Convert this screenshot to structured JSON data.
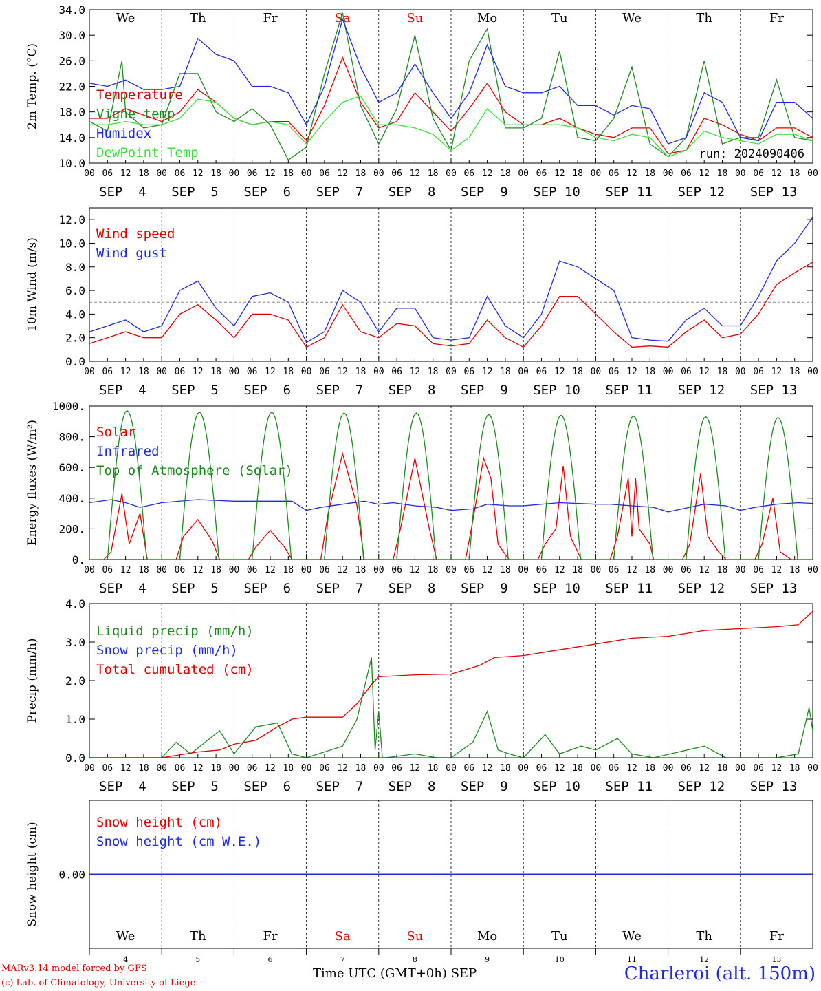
{
  "footer": {
    "model": "MARv3.14 model forced by GFS",
    "copyright": "(c) Lab. of Climatology, University of Liege",
    "time_axis": "Time UTC (GMT+0h) SEP",
    "station": "Charleroi (alt. 150m)"
  },
  "chart_data": [
    {
      "type": "line",
      "ylabel": "2m Temp. (°C)",
      "ylim": [
        10,
        34
      ],
      "yticks": [
        "10.0",
        "14.0",
        "18.0",
        "22.0",
        "26.0",
        "30.0",
        "34.0"
      ],
      "xlim_days": [
        0,
        10
      ],
      "weekdays": [
        "We",
        "Th",
        "Fr",
        "Sa",
        "Su",
        "Mo",
        "Tu",
        "We",
        "Th",
        "Fr"
      ],
      "weekend_color": "#e00000",
      "dates": [
        "SEP  4",
        "SEP  5",
        "SEP  6",
        "SEP  7",
        "SEP  8",
        "SEP  9",
        "SEP 10",
        "SEP 11",
        "SEP 12",
        "SEP 13"
      ],
      "hour_ticks": [
        "00",
        "06",
        "12",
        "18"
      ],
      "annotation": "run: 2024090406",
      "grid": "vertical dashed at day boundaries",
      "series": [
        {
          "name": "Temperature",
          "color": "#e00000",
          "x": [
            0,
            0.25,
            0.5,
            0.75,
            1,
            1.25,
            1.5,
            1.75,
            2,
            2.25,
            2.5,
            2.75,
            3,
            3.25,
            3.5,
            3.75,
            4,
            4.25,
            4.5,
            4.75,
            5,
            5.25,
            5.5,
            5.75,
            6,
            6.25,
            6.5,
            6.75,
            7,
            7.25,
            7.5,
            7.75,
            8,
            8.25,
            8.5,
            8.75,
            9,
            9.25,
            9.5,
            9.75,
            10
          ],
          "y": [
            17,
            17,
            18.5,
            17.5,
            16.5,
            18,
            21.5,
            19.5,
            17,
            16,
            16.5,
            16.5,
            13.5,
            19,
            26.5,
            19.5,
            15.5,
            16.5,
            21,
            18,
            15,
            18.5,
            22.5,
            18,
            16,
            16,
            17,
            15.5,
            14.5,
            14,
            15.5,
            15.5,
            11.5,
            12,
            17,
            16,
            14.5,
            13.5,
            15.5,
            15.5,
            14
          ]
        },
        {
          "name": "Vigne temp",
          "color": "#1e8a1e",
          "x": [
            0,
            0.25,
            0.45,
            0.5,
            0.75,
            1,
            1.25,
            1.5,
            1.75,
            2,
            2.25,
            2.5,
            2.75,
            3,
            3.25,
            3.5,
            3.75,
            4,
            4.25,
            4.5,
            4.75,
            5,
            5.25,
            5.5,
            5.75,
            6,
            6.25,
            6.5,
            6.75,
            7,
            7.25,
            7.5,
            7.75,
            8,
            8.25,
            8.5,
            8.75,
            9,
            9.25,
            9.5,
            9.75,
            10
          ],
          "y": [
            16.5,
            15,
            26,
            18,
            15.5,
            16,
            24,
            24,
            18,
            16.5,
            18.5,
            16,
            10.5,
            12.5,
            24,
            33.5,
            19,
            13,
            18.5,
            30,
            17,
            12,
            26,
            31,
            15.5,
            15.5,
            17,
            27.5,
            14,
            13.5,
            17,
            25,
            13,
            11,
            14,
            26,
            13,
            14,
            14,
            23,
            14,
            13.5
          ]
        },
        {
          "name": "Humidex",
          "color": "#1f2bdc",
          "x": [
            0,
            0.25,
            0.5,
            0.75,
            1,
            1.25,
            1.5,
            1.75,
            2,
            2.25,
            2.5,
            2.75,
            3,
            3.25,
            3.5,
            3.75,
            4,
            4.25,
            4.5,
            4.75,
            5,
            5.25,
            5.5,
            5.75,
            6,
            6.25,
            6.5,
            6.75,
            7,
            7.25,
            7.5,
            7.75,
            8,
            8.25,
            8.5,
            8.75,
            9,
            9.25,
            9.5,
            9.75,
            10
          ],
          "y": [
            22.5,
            22,
            23,
            21.5,
            21.5,
            22,
            29.5,
            27,
            26,
            22,
            22,
            21,
            16,
            22,
            32.5,
            25,
            19.5,
            21,
            25.5,
            21,
            17,
            21,
            28.5,
            22,
            21,
            21,
            22,
            19,
            19,
            17.5,
            19,
            18.5,
            13,
            14,
            21,
            19.5,
            14,
            13.5,
            19.5,
            19.5,
            17
          ]
        },
        {
          "name": "DewPoint Temp",
          "color": "#3ce03c",
          "x": [
            0,
            0.25,
            0.5,
            0.75,
            1,
            1.25,
            1.5,
            1.75,
            2,
            2.25,
            2.5,
            2.75,
            3,
            3.25,
            3.5,
            3.75,
            4,
            4.25,
            4.5,
            4.75,
            5,
            5.25,
            5.5,
            5.75,
            6,
            6.25,
            6.5,
            6.75,
            7,
            7.25,
            7.5,
            7.75,
            8,
            8.25,
            8.5,
            8.75,
            9,
            9.25,
            9.5,
            9.75,
            10
          ],
          "y": [
            16,
            16,
            16.5,
            16,
            16,
            17,
            20,
            19.5,
            17,
            16,
            16.5,
            16,
            13,
            16.5,
            19.5,
            20.5,
            16,
            16,
            15.5,
            14.5,
            12,
            14,
            18.5,
            16,
            16,
            16,
            16,
            15.5,
            14,
            13.5,
            14.5,
            14,
            11,
            12,
            15,
            14,
            13.5,
            13,
            14.5,
            14.5,
            13.5
          ]
        }
      ]
    },
    {
      "type": "line",
      "ylabel": "10m Wind (m/s)",
      "ylim": [
        0,
        13
      ],
      "yticks": [
        "0.0",
        "2.0",
        "4.0",
        "6.0",
        "8.0",
        "10.0",
        "12.0"
      ],
      "reference_line": 5,
      "series": [
        {
          "name": "Wind speed",
          "color": "#e00000",
          "x": [
            0,
            0.25,
            0.5,
            0.75,
            1,
            1.25,
            1.5,
            1.75,
            2,
            2.25,
            2.5,
            2.75,
            3,
            3.25,
            3.5,
            3.75,
            4,
            4.25,
            4.5,
            4.75,
            5,
            5.25,
            5.5,
            5.75,
            6,
            6.25,
            6.5,
            6.75,
            7,
            7.25,
            7.5,
            7.75,
            8,
            8.25,
            8.5,
            8.75,
            9,
            9.25,
            9.5,
            9.75,
            10
          ],
          "y": [
            1.5,
            2,
            2.5,
            2,
            2,
            4,
            4.8,
            3.5,
            2,
            4,
            4,
            3.5,
            1.2,
            2,
            4.8,
            2.5,
            2,
            3.2,
            3,
            1.5,
            1.3,
            1.5,
            3.5,
            2,
            1.2,
            3,
            5.5,
            5.5,
            4,
            2.5,
            1.2,
            1.3,
            1.2,
            2.5,
            3.5,
            2,
            2.3,
            4,
            6.5,
            7.5,
            8.4
          ]
        },
        {
          "name": "Wind gust",
          "color": "#1f2bdc",
          "x": [
            0,
            0.25,
            0.5,
            0.75,
            1,
            1.25,
            1.5,
            1.75,
            2,
            2.25,
            2.5,
            2.75,
            3,
            3.25,
            3.5,
            3.75,
            4,
            4.25,
            4.5,
            4.75,
            5,
            5.25,
            5.5,
            5.75,
            6,
            6.25,
            6.5,
            6.75,
            7,
            7.25,
            7.5,
            7.75,
            8,
            8.25,
            8.5,
            8.75,
            9,
            9.25,
            9.5,
            9.75,
            10
          ],
          "y": [
            2.5,
            3,
            3.5,
            2.5,
            3,
            6,
            6.8,
            4.5,
            3,
            5.5,
            5.8,
            5,
            1.6,
            2.5,
            6,
            5,
            2.5,
            4.5,
            4.5,
            2,
            1.8,
            2,
            5.5,
            3,
            2,
            4,
            8.5,
            8,
            7,
            6,
            2,
            1.8,
            1.7,
            3.5,
            4.5,
            3,
            3,
            5.5,
            8.5,
            10,
            12.2
          ]
        }
      ]
    },
    {
      "type": "line",
      "ylabel": "Energy fluxes (W/m²)",
      "ylim": [
        0,
        1000
      ],
      "yticks": [
        "0.",
        "200.",
        "400.",
        "600.",
        "800.",
        "1000."
      ],
      "series": [
        {
          "name": "Solar",
          "color": "#e00000",
          "x": [
            0,
            0.2,
            0.3,
            0.45,
            0.55,
            0.7,
            0.8,
            1,
            1.2,
            1.3,
            1.5,
            1.7,
            1.8,
            2,
            2.2,
            2.3,
            2.5,
            2.7,
            2.8,
            3,
            3.2,
            3.3,
            3.5,
            3.7,
            3.8,
            4,
            4.2,
            4.3,
            4.5,
            4.7,
            4.8,
            5,
            5.2,
            5.3,
            5.45,
            5.55,
            5.65,
            5.8,
            6,
            6.2,
            6.3,
            6.45,
            6.55,
            6.65,
            6.8,
            7,
            7.2,
            7.3,
            7.45,
            7.5,
            7.55,
            7.6,
            7.75,
            7.8,
            8,
            8.2,
            8.3,
            8.45,
            8.55,
            8.7,
            8.8,
            9,
            9.2,
            9.3,
            9.45,
            9.55,
            9.7,
            9.8,
            10
          ],
          "y": [
            0,
            0,
            50,
            430,
            100,
            300,
            0,
            0,
            0,
            150,
            260,
            120,
            0,
            0,
            0,
            80,
            190,
            80,
            0,
            0,
            0,
            300,
            690,
            350,
            0,
            0,
            0,
            200,
            660,
            200,
            0,
            0,
            0,
            250,
            660,
            530,
            100,
            0,
            0,
            0,
            100,
            200,
            610,
            150,
            0,
            0,
            0,
            150,
            530,
            150,
            530,
            200,
            100,
            0,
            0,
            0,
            100,
            560,
            150,
            50,
            0,
            0,
            0,
            100,
            400,
            50,
            0,
            0,
            0
          ]
        },
        {
          "name": "Infrared",
          "color": "#1f2bdc",
          "x": [
            0,
            0.3,
            0.5,
            0.7,
            1,
            1.5,
            2,
            2.8,
            3,
            3.2,
            3.5,
            3.8,
            4,
            4.2,
            4.5,
            4.8,
            5,
            5.3,
            5.5,
            5.8,
            6,
            6.5,
            7,
            7.2,
            7.5,
            7.8,
            8,
            8.2,
            8.5,
            8.8,
            9,
            9.2,
            9.5,
            9.8,
            10
          ],
          "y": [
            370,
            390,
            370,
            340,
            370,
            390,
            380,
            380,
            320,
            340,
            360,
            380,
            360,
            370,
            350,
            340,
            320,
            330,
            360,
            350,
            350,
            370,
            360,
            360,
            350,
            340,
            310,
            330,
            360,
            350,
            320,
            340,
            360,
            370,
            365
          ]
        },
        {
          "name": "Top of Atmosphere (Solar)",
          "color": "#1e8a1e",
          "shape": "daily-bell",
          "daily_peak": [
            970,
            960,
            960,
            955,
            955,
            945,
            940,
            935,
            930,
            925
          ],
          "sunrise_h": 6,
          "sunset_h": 19
        }
      ]
    },
    {
      "type": "line",
      "ylabel": "Precip (mm/h)",
      "ylim": [
        0,
        4
      ],
      "yticks": [
        "0.0",
        "1.0",
        "2.0",
        "3.0",
        "4.0"
      ],
      "series": [
        {
          "name": "Liquid precip (mm/h)",
          "color": "#1e8a1e",
          "x": [
            0,
            1,
            1.1,
            1.2,
            1.4,
            1.8,
            2,
            2.3,
            2.6,
            2.8,
            3,
            3.5,
            3.7,
            3.9,
            3.95,
            4,
            4.05,
            4.1,
            4.5,
            4.8,
            5,
            5.3,
            5.5,
            5.65,
            5.8,
            6,
            6.3,
            6.5,
            6.8,
            7,
            7.3,
            7.5,
            7.8,
            8.5,
            8.6,
            8.8,
            9,
            9.5,
            9.8,
            9.95,
            10
          ],
          "y": [
            0,
            0,
            0.2,
            0.4,
            0.1,
            0.7,
            0.1,
            0.8,
            0.9,
            0.1,
            0,
            0.3,
            1.0,
            2.6,
            0.2,
            1.2,
            0,
            0,
            0.1,
            0,
            0,
            0.4,
            1.2,
            0.2,
            0.1,
            0,
            0.6,
            0.1,
            0.3,
            0.2,
            0.5,
            0.1,
            0,
            0.3,
            0.2,
            0,
            0,
            0,
            0.1,
            1.3,
            0.7
          ]
        },
        {
          "name": "Snow precip (mm/h)",
          "color": "#1f2bdc",
          "x": [
            0,
            10
          ],
          "y": [
            0,
            0
          ]
        },
        {
          "name": "Total cumulated (cm)",
          "color": "#e00000",
          "x": [
            0,
            1,
            1.5,
            1.8,
            2,
            2.3,
            2.6,
            2.8,
            3,
            3.5,
            3.7,
            3.9,
            4,
            4.5,
            5,
            5.4,
            5.6,
            6,
            6.5,
            7,
            7.5,
            8,
            8.5,
            9,
            9.5,
            9.8,
            10
          ],
          "y": [
            0,
            0,
            0.15,
            0.2,
            0.35,
            0.45,
            0.8,
            1.0,
            1.05,
            1.05,
            1.4,
            1.9,
            2.1,
            2.15,
            2.17,
            2.4,
            2.6,
            2.65,
            2.8,
            2.95,
            3.1,
            3.15,
            3.3,
            3.35,
            3.4,
            3.45,
            3.8
          ]
        }
      ]
    },
    {
      "type": "line",
      "ylabel": "Snow height (cm)",
      "yticks": [
        "0.00"
      ],
      "series": [
        {
          "name": "Snow height (cm)",
          "color": "#e00000",
          "x": [
            0,
            10
          ],
          "y": [
            0,
            0
          ]
        },
        {
          "name": "Snow height (cm W.E.)",
          "color": "#1f2bdc",
          "x": [
            0,
            10
          ],
          "y": [
            0,
            0
          ]
        }
      ],
      "day_numbers": [
        "4",
        "5",
        "6",
        "7",
        "8",
        "9",
        "10",
        "11",
        "12",
        "13"
      ]
    }
  ]
}
